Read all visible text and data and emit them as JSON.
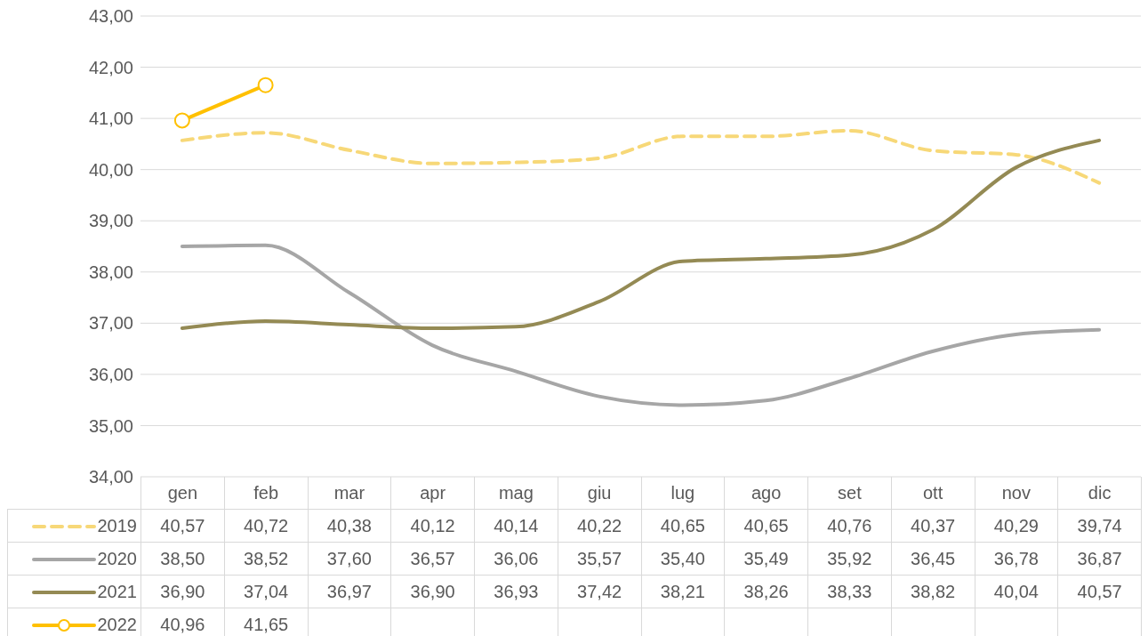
{
  "chart_data": {
    "type": "line",
    "categories": [
      "gen",
      "feb",
      "mar",
      "apr",
      "mag",
      "giu",
      "lug",
      "ago",
      "set",
      "ott",
      "nov",
      "dic"
    ],
    "ylim": [
      34,
      43
    ],
    "yticks": [
      {
        "value": 34,
        "label": "34,00"
      },
      {
        "value": 35,
        "label": "35,00"
      },
      {
        "value": 36,
        "label": "36,00"
      },
      {
        "value": 37,
        "label": "37,00"
      },
      {
        "value": 38,
        "label": "38,00"
      },
      {
        "value": 39,
        "label": "39,00"
      },
      {
        "value": 40,
        "label": "40,00"
      },
      {
        "value": 41,
        "label": "41,00"
      },
      {
        "value": 42,
        "label": "42,00"
      },
      {
        "value": 43,
        "label": "43,00"
      }
    ],
    "grid": "y",
    "legend": "bottom",
    "marker": "none",
    "line_style": "solid",
    "series": [
      {
        "name": "2019",
        "color": "#f7d878",
        "line_style": "dashed",
        "values": [
          40.57,
          40.72,
          40.38,
          40.12,
          40.14,
          40.22,
          40.65,
          40.65,
          40.76,
          40.37,
          40.29,
          39.74
        ],
        "value_labels": [
          "40,57",
          "40,72",
          "40,38",
          "40,12",
          "40,14",
          "40,22",
          "40,65",
          "40,65",
          "40,76",
          "40,37",
          "40,29",
          "39,74"
        ]
      },
      {
        "name": "2020",
        "color": "#a6a6a6",
        "values": [
          38.5,
          38.52,
          37.6,
          36.57,
          36.06,
          35.57,
          35.4,
          35.49,
          35.92,
          36.45,
          36.78,
          36.87
        ],
        "value_labels": [
          "38,50",
          "38,52",
          "37,60",
          "36,57",
          "36,06",
          "35,57",
          "35,40",
          "35,49",
          "35,92",
          "36,45",
          "36,78",
          "36,87"
        ]
      },
      {
        "name": "2021",
        "color": "#948a54",
        "values": [
          36.9,
          37.04,
          36.97,
          36.9,
          36.93,
          37.42,
          38.21,
          38.26,
          38.33,
          38.82,
          40.04,
          40.57
        ],
        "value_labels": [
          "36,90",
          "37,04",
          "36,97",
          "36,90",
          "36,93",
          "37,42",
          "38,21",
          "38,26",
          "38,33",
          "38,82",
          "40,04",
          "40,57"
        ]
      },
      {
        "name": "2022",
        "color": "#ffc000",
        "marker": "circle",
        "values": [
          40.96,
          41.65,
          null,
          null,
          null,
          null,
          null,
          null,
          null,
          null,
          null,
          null
        ],
        "value_labels": [
          "40,96",
          "41,65",
          null,
          null,
          null,
          null,
          null,
          null,
          null,
          null,
          null,
          null
        ]
      }
    ]
  }
}
